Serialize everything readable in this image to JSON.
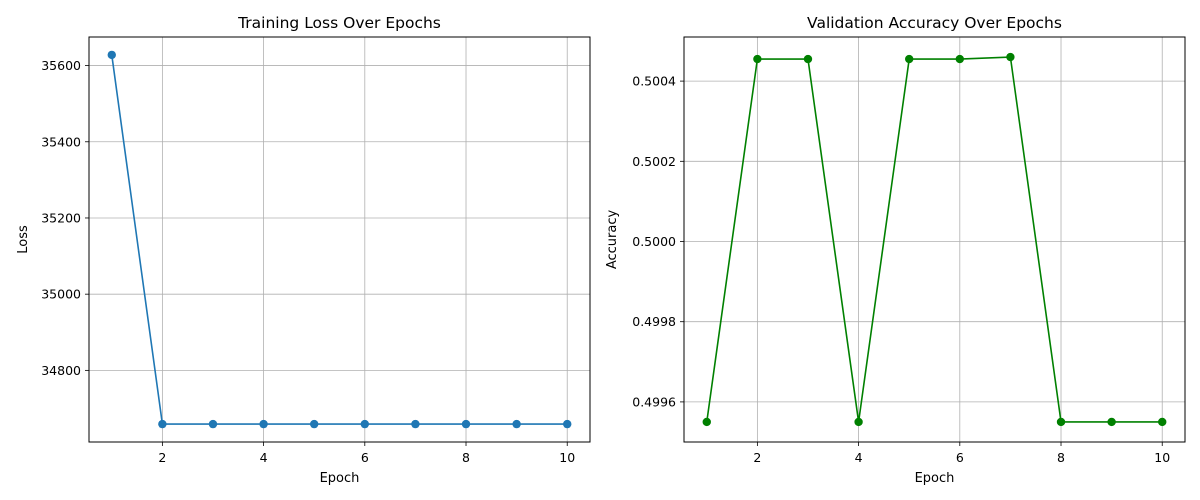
{
  "chart_data": [
    {
      "type": "line",
      "title": "Training Loss Over Epochs",
      "xlabel": "Epoch",
      "ylabel": "Loss",
      "grid": true,
      "color": "#1f77b4",
      "x": [
        1,
        2,
        3,
        4,
        5,
        6,
        7,
        8,
        9,
        10
      ],
      "series": [
        {
          "values": [
            35628,
            34659,
            34659,
            34659,
            34659,
            34659,
            34659,
            34659,
            34659,
            34659
          ]
        }
      ],
      "xlim": [
        0.55,
        10.45
      ],
      "ylim": [
        34612,
        35675
      ],
      "xticks": [
        2,
        4,
        6,
        8,
        10
      ],
      "yticks": [
        34800,
        35000,
        35200,
        35400,
        35600
      ],
      "xtick_labels": [
        "2",
        "4",
        "6",
        "8",
        "10"
      ],
      "ytick_labels": [
        "34800",
        "35000",
        "35200",
        "35400",
        "35600"
      ]
    },
    {
      "type": "line",
      "title": "Validation Accuracy Over Epochs",
      "xlabel": "Epoch",
      "ylabel": "Accuracy",
      "grid": true,
      "color": "#008000",
      "x": [
        1,
        2,
        3,
        4,
        5,
        6,
        7,
        8,
        9,
        10
      ],
      "series": [
        {
          "values": [
            0.49955,
            0.500455,
            0.500455,
            0.49955,
            0.500455,
            0.500455,
            0.50046,
            0.49955,
            0.49955,
            0.49955
          ]
        }
      ],
      "xlim": [
        0.55,
        10.45
      ],
      "ylim": [
        0.4995,
        0.50051
      ],
      "xticks": [
        2,
        4,
        6,
        8,
        10
      ],
      "yticks": [
        0.4996,
        0.4998,
        0.5,
        0.5002,
        0.5004
      ],
      "xtick_labels": [
        "2",
        "4",
        "6",
        "8",
        "10"
      ],
      "ytick_labels": [
        "0.4996",
        "0.4998",
        "0.5000",
        "0.5002",
        "0.5004"
      ]
    }
  ]
}
